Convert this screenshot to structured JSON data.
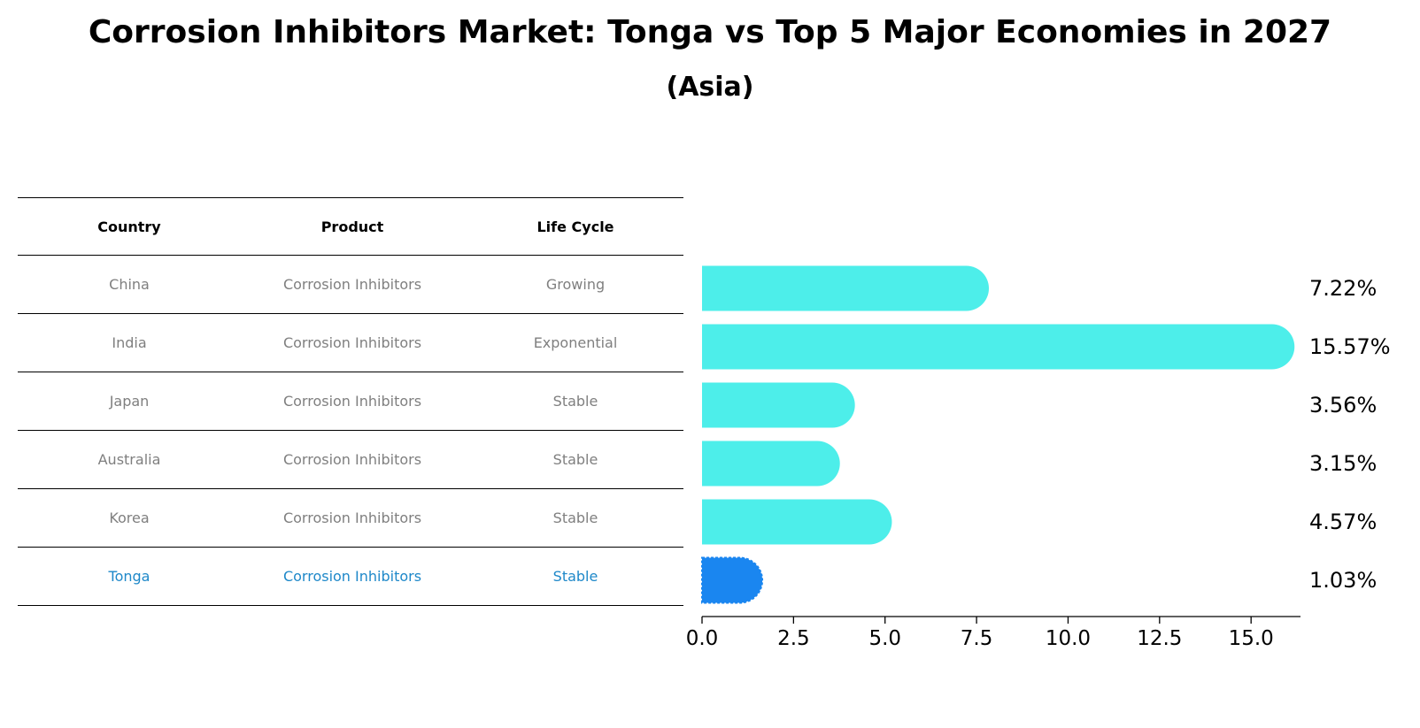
{
  "title": "Corrosion Inhibitors Market: Tonga vs Top 5 Major Economies in 2027",
  "subtitle": "(Asia)",
  "table": {
    "headers": [
      "Country",
      "Product",
      "Life Cycle"
    ],
    "rows": [
      {
        "country": "China",
        "product": "Corrosion Inhibitors",
        "life_cycle": "Growing"
      },
      {
        "country": "India",
        "product": "Corrosion Inhibitors",
        "life_cycle": "Exponential"
      },
      {
        "country": "Japan",
        "product": "Corrosion Inhibitors",
        "life_cycle": "Stable"
      },
      {
        "country": "Australia",
        "product": "Corrosion Inhibitors",
        "life_cycle": "Stable"
      },
      {
        "country": "Korea",
        "product": "Corrosion Inhibitors",
        "life_cycle": "Stable"
      },
      {
        "country": "Tonga",
        "product": "Corrosion Inhibitors",
        "life_cycle": "Stable"
      }
    ]
  },
  "colors": {
    "bar": "#4deeea",
    "highlight_bar": "#1a86f0",
    "highlight_text": "#1e88c9",
    "muted_text": "#7f7f7f"
  },
  "chart_data": {
    "type": "bar",
    "orientation": "horizontal",
    "categories": [
      "China",
      "India",
      "Japan",
      "Australia",
      "Korea",
      "Tonga"
    ],
    "values": [
      7.22,
      15.57,
      3.56,
      3.15,
      4.57,
      1.03
    ],
    "value_labels": [
      "7.22%",
      "15.57%",
      "3.56%",
      "3.15%",
      "4.57%",
      "1.03%"
    ],
    "highlight": "Tonga",
    "xlim": [
      0,
      16.35
    ],
    "xticks": [
      0,
      2.5,
      5,
      7.5,
      10,
      12.5,
      15
    ],
    "xtick_labels": [
      "0.0",
      "2.5",
      "5.0",
      "7.5",
      "10.0",
      "12.5",
      "15.0"
    ],
    "title": "Corrosion Inhibitors Market: Tonga vs Top 5 Major Economies in 2027",
    "xlabel": "",
    "ylabel": ""
  }
}
